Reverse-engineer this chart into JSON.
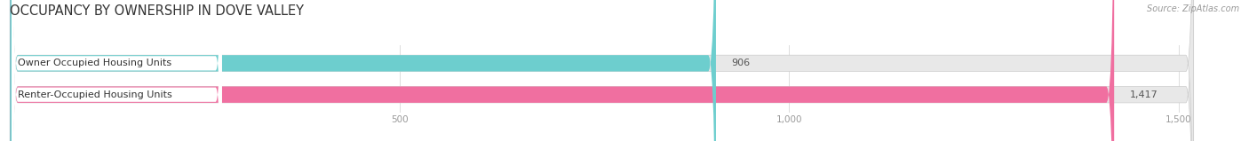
{
  "title": "OCCUPANCY BY OWNERSHIP IN DOVE VALLEY",
  "source_text": "Source: ZipAtlas.com",
  "categories": [
    "Renter-Occupied Housing Units",
    "Owner Occupied Housing Units"
  ],
  "values": [
    1417,
    906
  ],
  "bar_colors": [
    "#f06fa0",
    "#6dcece"
  ],
  "bar_bg_color": "#e8e8e8",
  "value_labels": [
    "1,417",
    "906"
  ],
  "xlim": [
    0,
    1550
  ],
  "xticks": [
    500,
    1000,
    1500
  ],
  "xtick_labels": [
    "500",
    "1,000",
    "1,500"
  ],
  "title_fontsize": 10.5,
  "label_fontsize": 8.0,
  "value_fontsize": 8.0,
  "background_color": "#ffffff",
  "bar_height": 0.52
}
